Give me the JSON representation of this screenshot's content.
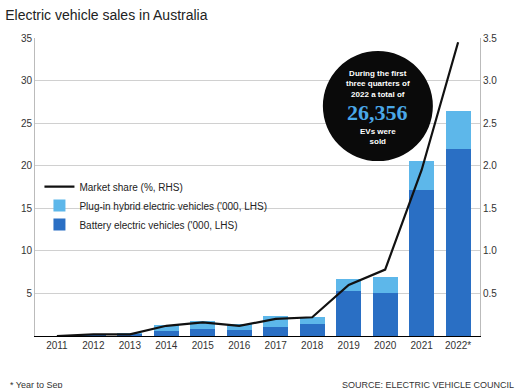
{
  "chart_data": {
    "type": "bar",
    "title": "Electric vehicle sales in Australia",
    "categories": [
      "2011",
      "2012",
      "2013",
      "2014",
      "2015",
      "2016",
      "2017",
      "2018",
      "2019",
      "2020",
      "2021",
      "2022*"
    ],
    "stacked": true,
    "series": [
      {
        "name": "Battery electric vehicles ('000, LHS)",
        "color": "#2a6fc4",
        "values": [
          0.05,
          0.2,
          0.25,
          0.6,
          0.8,
          0.7,
          1.1,
          1.4,
          5.3,
          5.0,
          17.2,
          22.0
        ]
      },
      {
        "name": "Plug-in hybrid electric vehicles ('000, LHS)",
        "color": "#5db7ea",
        "values": [
          0.0,
          0.05,
          0.05,
          0.7,
          1.0,
          0.7,
          1.2,
          0.8,
          1.4,
          1.9,
          3.4,
          4.4
        ]
      },
      {
        "name": "Market share (%, RHS)",
        "type": "line",
        "axis": "y2",
        "color": "#111111",
        "values": [
          0.0,
          0.02,
          0.02,
          0.12,
          0.16,
          0.12,
          0.2,
          0.22,
          0.6,
          0.78,
          1.95,
          3.45
        ]
      }
    ],
    "ylim": [
      0,
      35
    ],
    "yticks": [
      5,
      10,
      15,
      20,
      25,
      30,
      35
    ],
    "y2lim": [
      0,
      3.5
    ],
    "y2ticks": [
      0.5,
      {
        "value": 1,
        "label": "1.0"
      },
      1.5,
      {
        "value": 2,
        "label": "2.0"
      },
      2.5,
      {
        "value": 3,
        "label": "3.0"
      },
      3.5
    ],
    "grid": true,
    "legend": "left",
    "annotation": {
      "before": [
        "During the first",
        "three quarters of",
        "2022 a total of"
      ],
      "highlight": "26,356",
      "after": [
        "EVs were",
        "sold"
      ]
    },
    "footnote": "* Year to Sep",
    "source": "SOURCE: ELECTRIC VEHICLE COUNCIL"
  }
}
